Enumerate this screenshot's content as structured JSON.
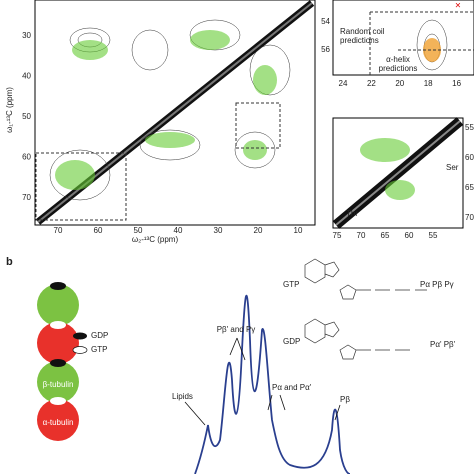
{
  "panel_a": {
    "main": {
      "yticks": [
        30,
        40,
        50,
        60,
        70
      ],
      "xticks": [
        70,
        60,
        50,
        40,
        30,
        20,
        10
      ],
      "xlabel": "ω₂-¹³C (ppm)",
      "ylabel": "ω₁-¹³C (ppm)"
    },
    "inset_top": {
      "yticks": [
        54,
        56
      ],
      "xticks": [
        24,
        22,
        20,
        18,
        16
      ],
      "random_coil": [
        "Random coil",
        "predictions"
      ],
      "helix": [
        "α-helix",
        "predictions"
      ]
    },
    "inset_bottom": {
      "yticks": [
        55,
        60,
        65,
        70
      ],
      "xticks": [
        75,
        70,
        65,
        60,
        55
      ],
      "ser": "Ser",
      "thr": "Thr"
    }
  },
  "panel_b": {
    "label": "b",
    "legend": {
      "gdp": "GDP",
      "gtp": "GTP",
      "beta": "β-tubulin",
      "alpha": "α-tubulin"
    },
    "peaks": {
      "pbeta_gamma": "Pβ' and Pγ",
      "lipids": "Lipids",
      "palpha": "Pα and Pα'",
      "pbeta": "Pβ"
    },
    "structures": {
      "gtp": "GTP",
      "gtp_p": "Pα Pβ Pγ",
      "gdp": "GDP",
      "gdp_p": "Pα' Pβ'"
    }
  }
}
